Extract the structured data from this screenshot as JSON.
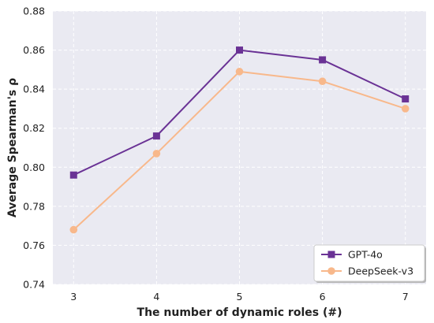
{
  "chart_data": {
    "type": "line",
    "title": "",
    "xlabel": "The number of dynamic roles (#)",
    "ylabel": "Average Spearman's ρ",
    "x": [
      3,
      4,
      5,
      6,
      7
    ],
    "xlim": [
      2.75,
      7.25
    ],
    "ylim": [
      0.74,
      0.88
    ],
    "yticks": [
      "0.74",
      "0.76",
      "0.78",
      "0.80",
      "0.82",
      "0.84",
      "0.86",
      "0.88"
    ],
    "xticks": [
      "3",
      "4",
      "5",
      "6",
      "7"
    ],
    "grid": true,
    "legend_position": "bottom-right",
    "series": [
      {
        "name": "GPT-4o",
        "values": [
          0.796,
          0.816,
          0.86,
          0.855,
          0.835
        ],
        "color": "#6a3295",
        "marker": "square"
      },
      {
        "name": "DeepSeek-v3",
        "values": [
          0.768,
          0.807,
          0.849,
          0.844,
          0.83
        ],
        "color": "#f8b88b",
        "marker": "circle"
      }
    ]
  }
}
